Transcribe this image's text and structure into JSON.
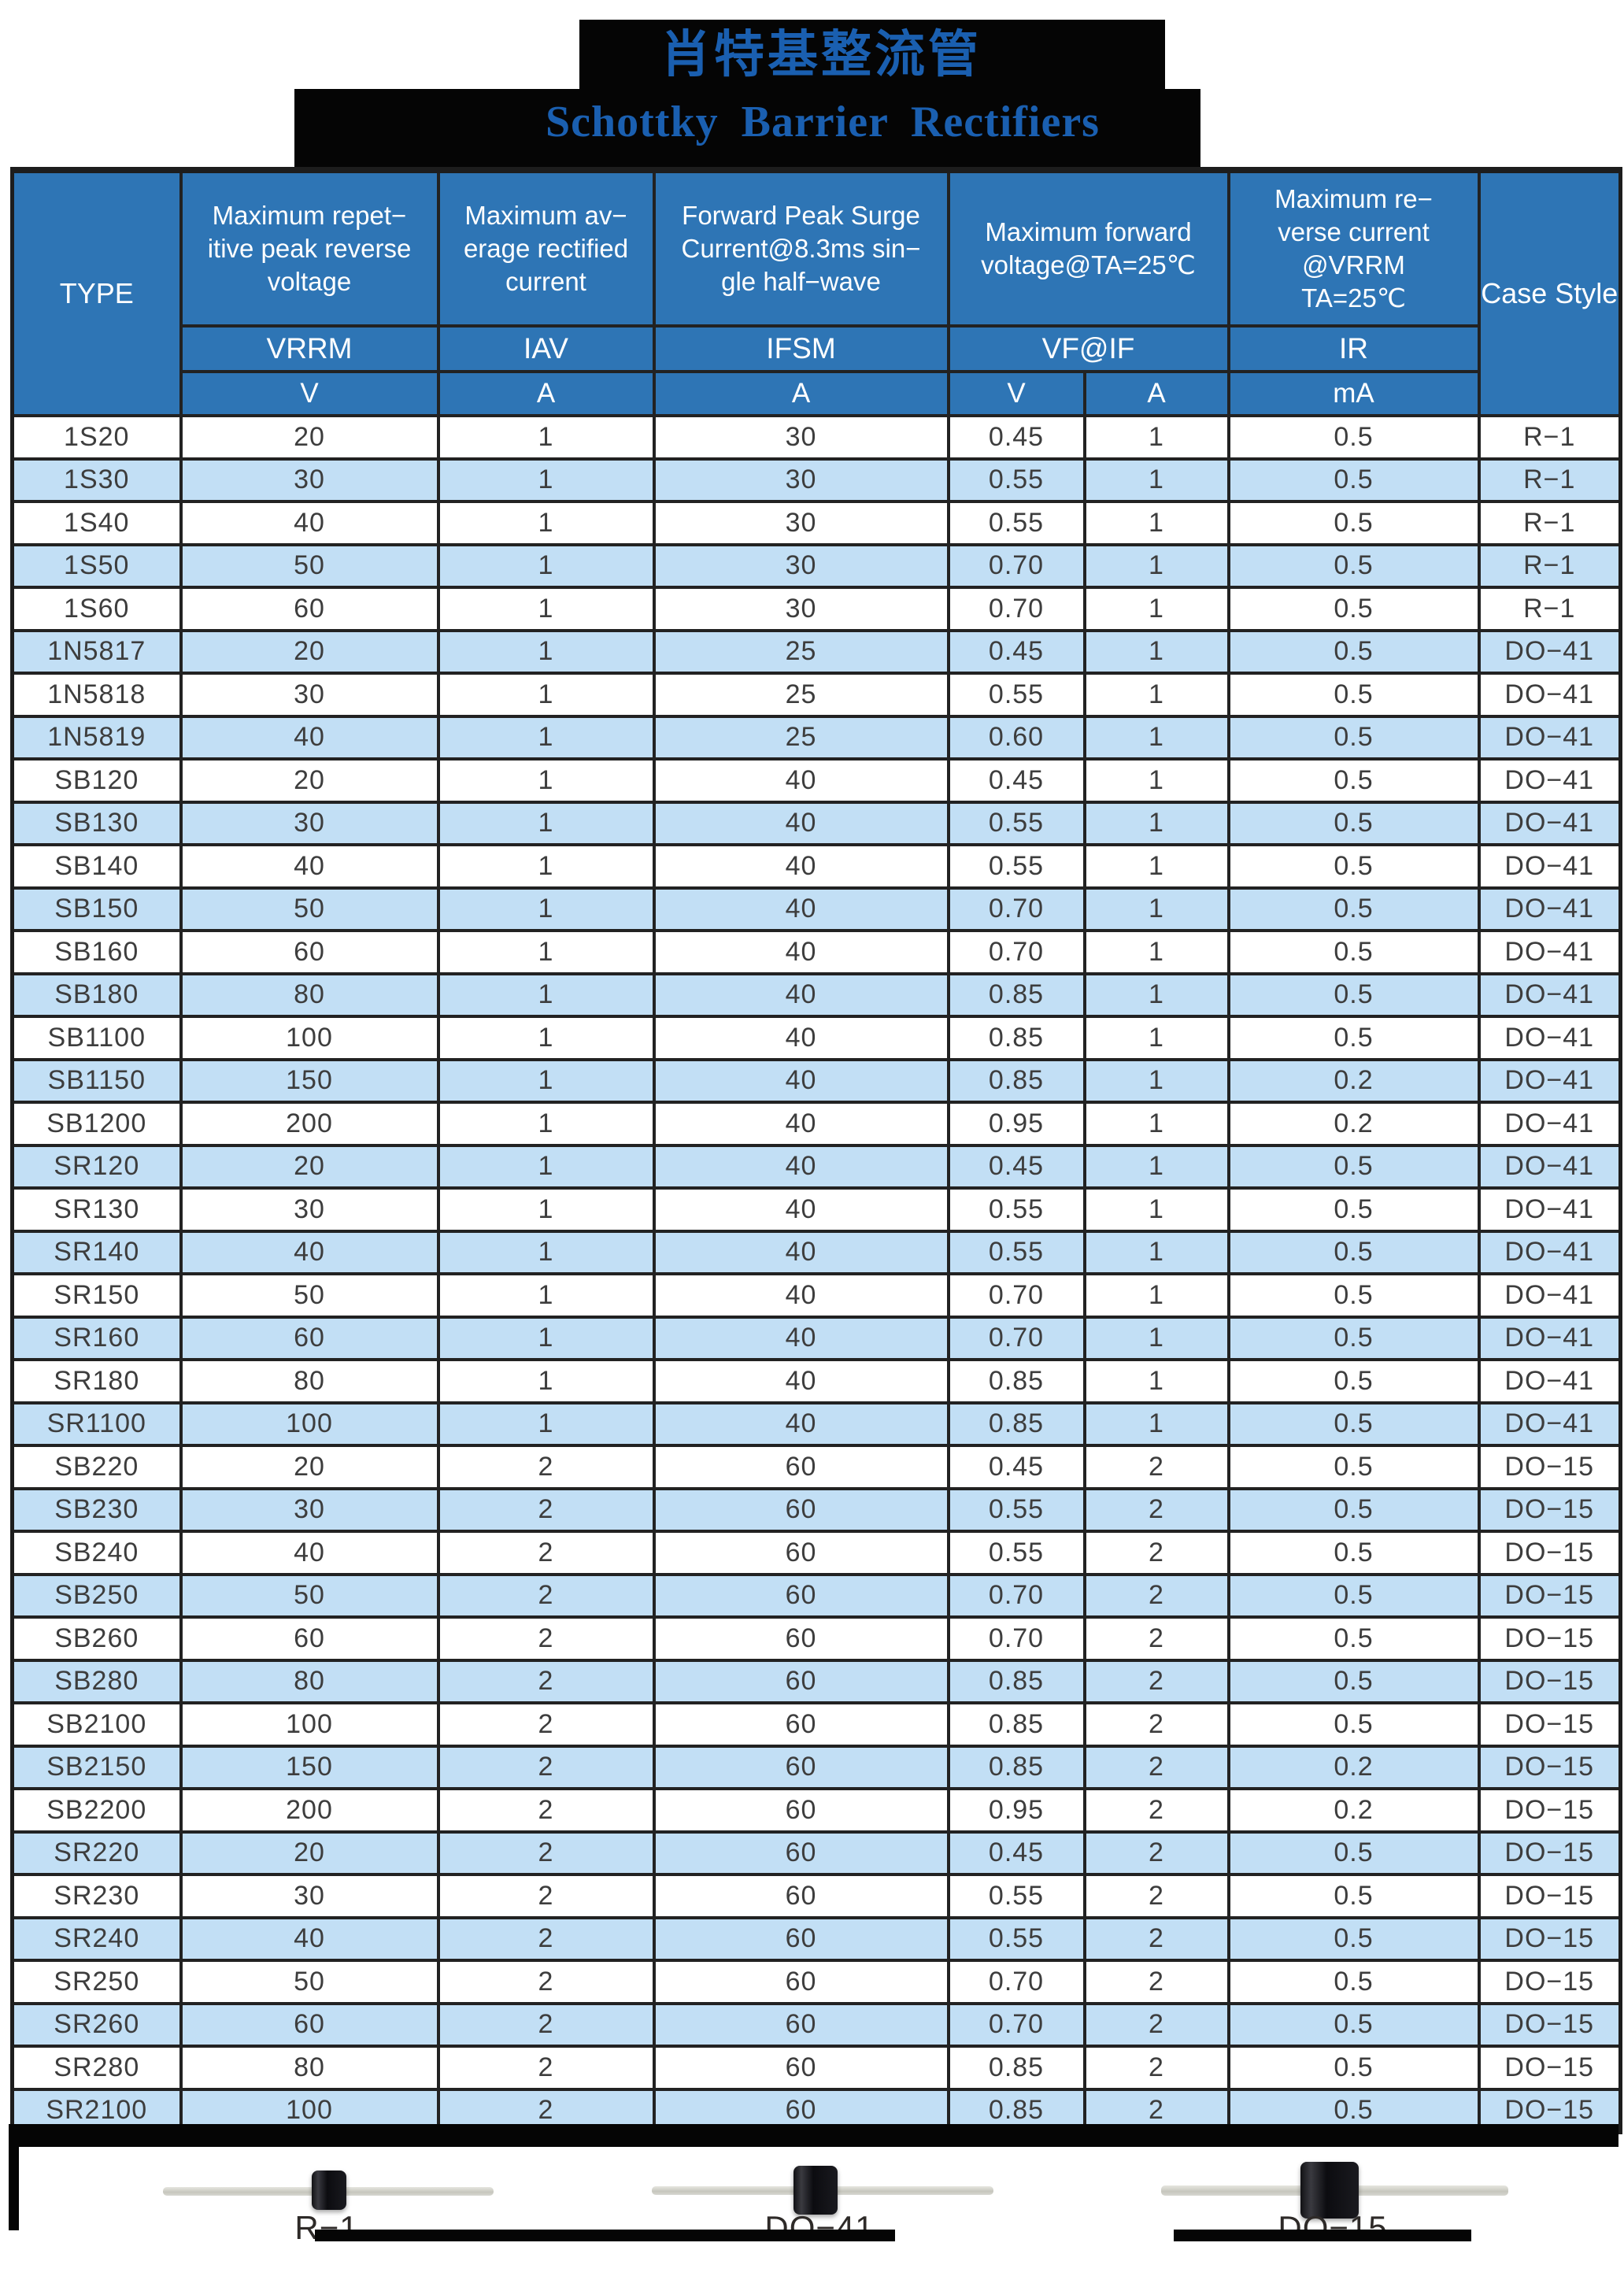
{
  "title": {
    "chinese": "肖特基整流管",
    "english": "Schottky Barrier Rectifiers"
  },
  "table": {
    "corner": {
      "type_label": "TYPE",
      "case_style_label": "Case Style"
    },
    "columns": [
      {
        "desc": "Maximum  repet−\nitive peak reverse\nvoltage",
        "symbol": "VRRM",
        "unit": "V"
      },
      {
        "desc": "Maximum av−\nerage rectified\ncurrent",
        "symbol": "IAV",
        "unit": "A"
      },
      {
        "desc": "Forward Peak Surge\nCurrent@8.3ms sin−\ngle half−wave",
        "symbol": "IFSM",
        "unit": "A"
      },
      {
        "desc": "Maximum forward\nvoltage@TA=25℃",
        "symbol": "VF@IF",
        "unit_v": "V",
        "unit_a": "A"
      },
      {
        "desc": "Maximum re−\nverse current\n@VRRM\nTA=25℃",
        "symbol": "IR",
        "unit": "mA"
      }
    ],
    "row_keys": [
      "type",
      "vrrm_v",
      "iav_a",
      "ifsm_a",
      "vf_v",
      "if_a",
      "ir_ma",
      "case_style"
    ],
    "rows": [
      [
        "1S20",
        "20",
        "1",
        "30",
        "0.45",
        "1",
        "0.5",
        "R−1"
      ],
      [
        "1S30",
        "30",
        "1",
        "30",
        "0.55",
        "1",
        "0.5",
        "R−1"
      ],
      [
        "1S40",
        "40",
        "1",
        "30",
        "0.55",
        "1",
        "0.5",
        "R−1"
      ],
      [
        "1S50",
        "50",
        "1",
        "30",
        "0.70",
        "1",
        "0.5",
        "R−1"
      ],
      [
        "1S60",
        "60",
        "1",
        "30",
        "0.70",
        "1",
        "0.5",
        "R−1"
      ],
      [
        "1N5817",
        "20",
        "1",
        "25",
        "0.45",
        "1",
        "0.5",
        "DO−41"
      ],
      [
        "1N5818",
        "30",
        "1",
        "25",
        "0.55",
        "1",
        "0.5",
        "DO−41"
      ],
      [
        "1N5819",
        "40",
        "1",
        "25",
        "0.60",
        "1",
        "0.5",
        "DO−41"
      ],
      [
        "SB120",
        "20",
        "1",
        "40",
        "0.45",
        "1",
        "0.5",
        "DO−41"
      ],
      [
        "SB130",
        "30",
        "1",
        "40",
        "0.55",
        "1",
        "0.5",
        "DO−41"
      ],
      [
        "SB140",
        "40",
        "1",
        "40",
        "0.55",
        "1",
        "0.5",
        "DO−41"
      ],
      [
        "SB150",
        "50",
        "1",
        "40",
        "0.70",
        "1",
        "0.5",
        "DO−41"
      ],
      [
        "SB160",
        "60",
        "1",
        "40",
        "0.70",
        "1",
        "0.5",
        "DO−41"
      ],
      [
        "SB180",
        "80",
        "1",
        "40",
        "0.85",
        "1",
        "0.5",
        "DO−41"
      ],
      [
        "SB1100",
        "100",
        "1",
        "40",
        "0.85",
        "1",
        "0.5",
        "DO−41"
      ],
      [
        "SB1150",
        "150",
        "1",
        "40",
        "0.85",
        "1",
        "0.2",
        "DO−41"
      ],
      [
        "SB1200",
        "200",
        "1",
        "40",
        "0.95",
        "1",
        "0.2",
        "DO−41"
      ],
      [
        "SR120",
        "20",
        "1",
        "40",
        "0.45",
        "1",
        "0.5",
        "DO−41"
      ],
      [
        "SR130",
        "30",
        "1",
        "40",
        "0.55",
        "1",
        "0.5",
        "DO−41"
      ],
      [
        "SR140",
        "40",
        "1",
        "40",
        "0.55",
        "1",
        "0.5",
        "DO−41"
      ],
      [
        "SR150",
        "50",
        "1",
        "40",
        "0.70",
        "1",
        "0.5",
        "DO−41"
      ],
      [
        "SR160",
        "60",
        "1",
        "40",
        "0.70",
        "1",
        "0.5",
        "DO−41"
      ],
      [
        "SR180",
        "80",
        "1",
        "40",
        "0.85",
        "1",
        "0.5",
        "DO−41"
      ],
      [
        "SR1100",
        "100",
        "1",
        "40",
        "0.85",
        "1",
        "0.5",
        "DO−41"
      ],
      [
        "SB220",
        "20",
        "2",
        "60",
        "0.45",
        "2",
        "0.5",
        "DO−15"
      ],
      [
        "SB230",
        "30",
        "2",
        "60",
        "0.55",
        "2",
        "0.5",
        "DO−15"
      ],
      [
        "SB240",
        "40",
        "2",
        "60",
        "0.55",
        "2",
        "0.5",
        "DO−15"
      ],
      [
        "SB250",
        "50",
        "2",
        "60",
        "0.70",
        "2",
        "0.5",
        "DO−15"
      ],
      [
        "SB260",
        "60",
        "2",
        "60",
        "0.70",
        "2",
        "0.5",
        "DO−15"
      ],
      [
        "SB280",
        "80",
        "2",
        "60",
        "0.85",
        "2",
        "0.5",
        "DO−15"
      ],
      [
        "SB2100",
        "100",
        "2",
        "60",
        "0.85",
        "2",
        "0.5",
        "DO−15"
      ],
      [
        "SB2150",
        "150",
        "2",
        "60",
        "0.85",
        "2",
        "0.2",
        "DO−15"
      ],
      [
        "SB2200",
        "200",
        "2",
        "60",
        "0.95",
        "2",
        "0.2",
        "DO−15"
      ],
      [
        "SR220",
        "20",
        "2",
        "60",
        "0.45",
        "2",
        "0.5",
        "DO−15"
      ],
      [
        "SR230",
        "30",
        "2",
        "60",
        "0.55",
        "2",
        "0.5",
        "DO−15"
      ],
      [
        "SR240",
        "40",
        "2",
        "60",
        "0.55",
        "2",
        "0.5",
        "DO−15"
      ],
      [
        "SR250",
        "50",
        "2",
        "60",
        "0.70",
        "2",
        "0.5",
        "DO−15"
      ],
      [
        "SR260",
        "60",
        "2",
        "60",
        "0.70",
        "2",
        "0.5",
        "DO−15"
      ],
      [
        "SR280",
        "80",
        "2",
        "60",
        "0.85",
        "2",
        "0.5",
        "DO−15"
      ],
      [
        "SR2100",
        "100",
        "2",
        "60",
        "0.85",
        "2",
        "0.5",
        "DO−15"
      ]
    ]
  },
  "packages": [
    {
      "label": "R−1"
    },
    {
      "label": "DO−41"
    },
    {
      "label": "DO−15"
    }
  ],
  "colors": {
    "header_blue": "#2E75B5",
    "row_blue": "#C2DFF5",
    "title_blue": "#1A5FB0",
    "black": "#050505"
  }
}
